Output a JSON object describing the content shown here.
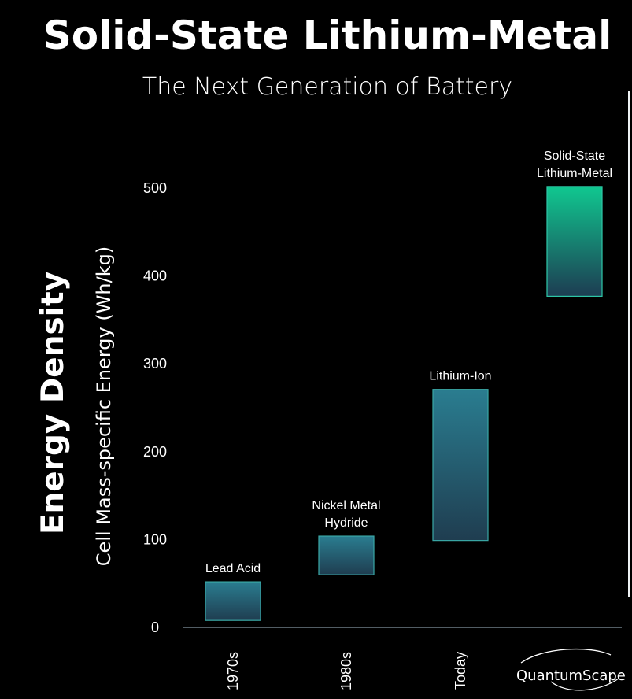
{
  "chart_data": {
    "type": "range-bar",
    "title": "Solid-State Lithium-Metal",
    "subtitle": "The Next Generation of Battery",
    "ylabel_main": "Energy Density",
    "ylabel": "Cell Mass-specific Energy (Wh/kg)",
    "yticks": [
      0,
      100,
      200,
      300,
      400,
      500
    ],
    "ylim": [
      0,
      500
    ],
    "categories": [
      "1970s",
      "1980s",
      "Today",
      ""
    ],
    "series": [
      {
        "name": "Lead Acid",
        "low": 7,
        "high": 51
      },
      {
        "name": "Nickel Metal Hydride",
        "low": 59,
        "high": 103
      },
      {
        "name": "Lithium-Ion",
        "low": 98,
        "high": 270
      },
      {
        "name": "Solid-State Lithium-Metal",
        "low": 376,
        "high": 501
      }
    ],
    "grid": false,
    "colors": {
      "bar_top": "#2a7d90",
      "bar_bottom": "#1f3d50",
      "bar_edge": "#3aa8a6",
      "ss_top": "#10c890",
      "ss_bottom": "#1d3c52",
      "ss_edge": "#2ec7a8",
      "axis": "#6e7c86"
    }
  },
  "brand": {
    "logo_text": "QuantumScape"
  }
}
